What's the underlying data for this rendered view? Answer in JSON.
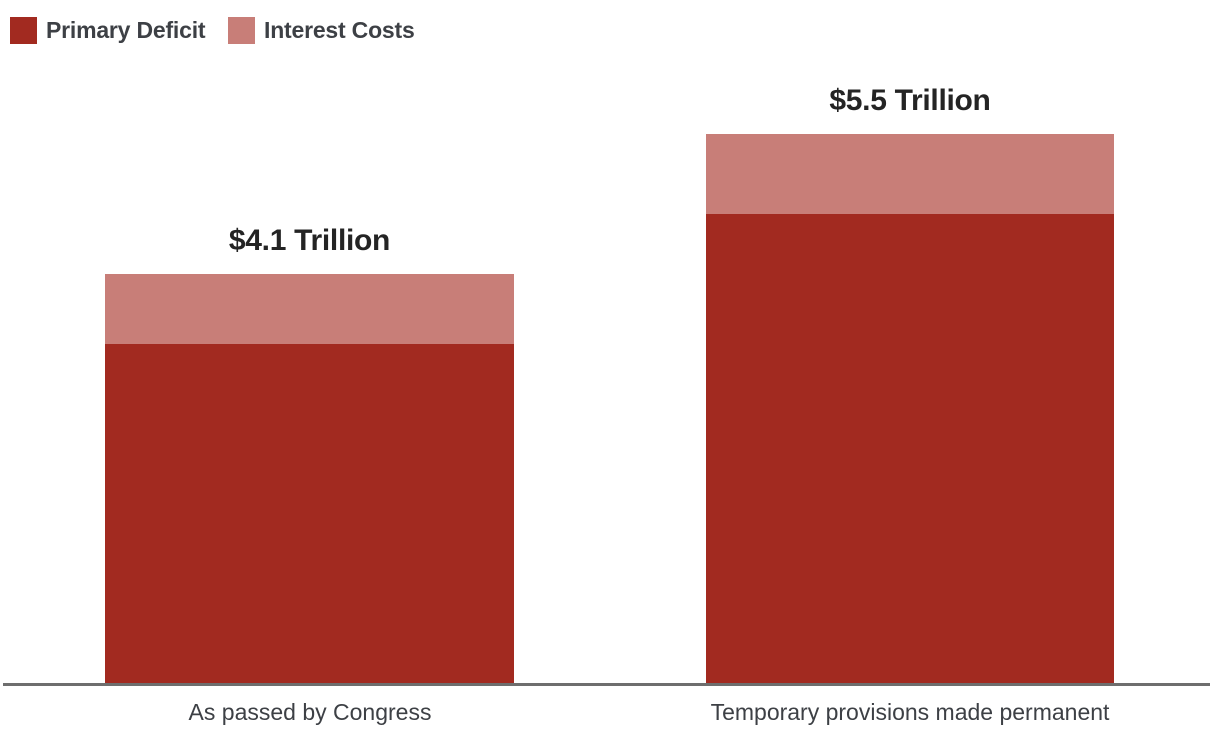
{
  "legend": {
    "items": [
      {
        "label": "Primary Deficit",
        "color": "#a22a20"
      },
      {
        "label": "Interest Costs",
        "color": "#c87e78"
      }
    ]
  },
  "chart_data": {
    "type": "bar",
    "stacked": true,
    "categories": [
      "As passed by Congress",
      "Temporary provisions made permanent"
    ],
    "series": [
      {
        "name": "Primary Deficit",
        "color": "#a22a20",
        "values": [
          3.4,
          4.7
        ]
      },
      {
        "name": "Interest Costs",
        "color": "#c87e78",
        "values": [
          0.7,
          0.8
        ]
      }
    ],
    "totals": [
      4.1,
      5.5
    ],
    "total_labels": [
      "$4.1 Trillion",
      "$5.5 Trillion"
    ],
    "unit": "trillions of dollars",
    "ylim": [
      0,
      5.5
    ],
    "grid": false,
    "y_axis_shown": false,
    "legend_position": "top-left",
    "axis_line_color": "#6e6e6e",
    "background_color": "#ffffff",
    "value_label_color": "#242424",
    "text_color": "#3d4045"
  }
}
